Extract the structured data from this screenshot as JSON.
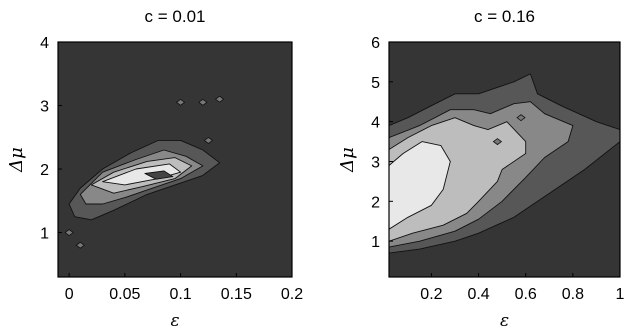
{
  "chart_data": [
    {
      "type": "contour",
      "title": "c = 0.01",
      "xlabel": "ε",
      "ylabel": "Δμ",
      "xlim": [
        -0.01,
        0.2
      ],
      "ylim": [
        0.3,
        4
      ],
      "xticks": [
        {
          "value": 0,
          "label": "0"
        },
        {
          "value": 0.05,
          "label": "0.05"
        },
        {
          "value": 0.1,
          "label": "0.1"
        },
        {
          "value": 0.15,
          "label": "0.15"
        },
        {
          "value": 0.2,
          "label": "0.2"
        }
      ],
      "yticks": [
        {
          "value": 1,
          "label": "1"
        },
        {
          "value": 2,
          "label": "2"
        },
        {
          "value": 3,
          "label": "3"
        },
        {
          "value": 4,
          "label": "4"
        }
      ],
      "levels": [
        {
          "color": "#575757",
          "polygons": [
            [
              [
                0.0,
                1.45
              ],
              [
                0.01,
                1.7
              ],
              [
                0.03,
                2.0
              ],
              [
                0.055,
                2.25
              ],
              [
                0.08,
                2.45
              ],
              [
                0.1,
                2.45
              ],
              [
                0.12,
                2.3
              ],
              [
                0.135,
                2.1
              ],
              [
                0.12,
                1.9
              ],
              [
                0.095,
                1.75
              ],
              [
                0.07,
                1.6
              ],
              [
                0.04,
                1.35
              ],
              [
                0.02,
                1.2
              ],
              [
                0.005,
                1.25
              ]
            ]
          ]
        },
        {
          "color": "#888888",
          "polygons": [
            [
              [
                0.01,
                1.6
              ],
              [
                0.03,
                1.95
              ],
              [
                0.06,
                2.15
              ],
              [
                0.085,
                2.3
              ],
              [
                0.105,
                2.2
              ],
              [
                0.12,
                2.05
              ],
              [
                0.1,
                1.85
              ],
              [
                0.075,
                1.7
              ],
              [
                0.05,
                1.55
              ],
              [
                0.03,
                1.45
              ],
              [
                0.015,
                1.45
              ]
            ]
          ]
        },
        {
          "color": "#bdbdbd",
          "polygons": [
            [
              [
                0.02,
                1.75
              ],
              [
                0.04,
                1.95
              ],
              [
                0.07,
                2.12
              ],
              [
                0.095,
                2.18
              ],
              [
                0.11,
                2.05
              ],
              [
                0.095,
                1.85
              ],
              [
                0.065,
                1.72
              ],
              [
                0.04,
                1.62
              ]
            ]
          ]
        },
        {
          "color": "#e8e8e8",
          "polygons": [
            [
              [
                0.03,
                1.8
              ],
              [
                0.06,
                2.0
              ],
              [
                0.09,
                2.08
              ],
              [
                0.1,
                1.95
              ],
              [
                0.08,
                1.85
              ],
              [
                0.05,
                1.75
              ]
            ]
          ]
        },
        {
          "color": "#444444",
          "polygons": [
            [
              [
                0.068,
                1.93
              ],
              [
                0.085,
                1.97
              ],
              [
                0.093,
                1.88
              ],
              [
                0.078,
                1.84
              ]
            ]
          ]
        }
      ],
      "small_marks": [
        [
          0.1,
          3.05
        ],
        [
          0.135,
          3.1
        ],
        [
          0.12,
          3.05
        ],
        [
          0.125,
          2.45
        ],
        [
          0.0,
          1.0
        ],
        [
          0.01,
          0.8
        ]
      ]
    },
    {
      "type": "contour",
      "title": "c = 0.16",
      "xlabel": "ε",
      "ylabel": "Δμ",
      "xlim": [
        0.02,
        1
      ],
      "ylim": [
        0.1,
        6
      ],
      "xticks": [
        {
          "value": 0.2,
          "label": "0.2"
        },
        {
          "value": 0.4,
          "label": "0.4"
        },
        {
          "value": 0.6,
          "label": "0.6"
        },
        {
          "value": 0.8,
          "label": "0.8"
        },
        {
          "value": 1,
          "label": "1"
        }
      ],
      "yticks": [
        {
          "value": 1,
          "label": "1"
        },
        {
          "value": 2,
          "label": "2"
        },
        {
          "value": 3,
          "label": "3"
        },
        {
          "value": 4,
          "label": "4"
        },
        {
          "value": 5,
          "label": "5"
        },
        {
          "value": 6,
          "label": "6"
        }
      ],
      "levels": [
        {
          "color": "#575757",
          "polygons": [
            [
              [
                0.02,
                0.7
              ],
              [
                0.02,
                3.9
              ],
              [
                0.1,
                4.1
              ],
              [
                0.2,
                4.4
              ],
              [
                0.3,
                4.7
              ],
              [
                0.4,
                4.7
              ],
              [
                0.5,
                4.9
              ],
              [
                0.55,
                5.0
              ],
              [
                0.62,
                5.2
              ],
              [
                0.65,
                4.7
              ],
              [
                0.75,
                4.4
              ],
              [
                0.9,
                4.0
              ],
              [
                1.0,
                3.8
              ],
              [
                1.0,
                3.5
              ],
              [
                0.85,
                2.8
              ],
              [
                0.7,
                2.2
              ],
              [
                0.55,
                1.6
              ],
              [
                0.4,
                1.2
              ],
              [
                0.3,
                1.0
              ],
              [
                0.15,
                0.8
              ]
            ]
          ]
        },
        {
          "color": "#888888",
          "polygons": [
            [
              [
                0.02,
                0.85
              ],
              [
                0.02,
                3.6
              ],
              [
                0.15,
                3.9
              ],
              [
                0.28,
                4.3
              ],
              [
                0.38,
                4.3
              ],
              [
                0.45,
                4.2
              ],
              [
                0.55,
                4.45
              ],
              [
                0.62,
                4.5
              ],
              [
                0.68,
                4.2
              ],
              [
                0.8,
                3.9
              ],
              [
                0.78,
                3.5
              ],
              [
                0.68,
                3.1
              ],
              [
                0.6,
                2.6
              ],
              [
                0.5,
                2.0
              ],
              [
                0.4,
                1.55
              ],
              [
                0.3,
                1.25
              ],
              [
                0.15,
                1.0
              ]
            ]
          ]
        },
        {
          "color": "#bdbdbd",
          "polygons": [
            [
              [
                0.02,
                1.0
              ],
              [
                0.02,
                3.3
              ],
              [
                0.1,
                3.6
              ],
              [
                0.2,
                3.9
              ],
              [
                0.3,
                4.1
              ],
              [
                0.38,
                3.9
              ],
              [
                0.44,
                3.8
              ],
              [
                0.52,
                4.0
              ],
              [
                0.6,
                3.5
              ],
              [
                0.6,
                3.2
              ],
              [
                0.5,
                2.8
              ],
              [
                0.48,
                2.5
              ],
              [
                0.4,
                2.0
              ],
              [
                0.35,
                1.7
              ],
              [
                0.25,
                1.4
              ],
              [
                0.12,
                1.2
              ]
            ]
          ]
        },
        {
          "color": "#e8e8e8",
          "polygons": [
            [
              [
                0.02,
                1.3
              ],
              [
                0.02,
                2.9
              ],
              [
                0.08,
                3.2
              ],
              [
                0.16,
                3.5
              ],
              [
                0.24,
                3.4
              ],
              [
                0.28,
                3.0
              ],
              [
                0.25,
                2.3
              ],
              [
                0.2,
                1.9
              ],
              [
                0.1,
                1.6
              ]
            ]
          ]
        }
      ],
      "small_marks": [
        [
          0.58,
          4.1
        ],
        [
          0.48,
          3.5
        ]
      ]
    }
  ]
}
